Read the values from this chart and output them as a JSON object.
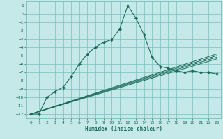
{
  "xlabel": "Humidex (Indice chaleur)",
  "ylabel": "",
  "bg_color": "#c5e8e8",
  "grid_color": "#7abebe",
  "line_color": "#1a6b5a",
  "xlim": [
    -0.5,
    23.5
  ],
  "ylim": [
    -12.5,
    1.5
  ],
  "xticks": [
    0,
    1,
    2,
    3,
    4,
    5,
    6,
    7,
    8,
    9,
    10,
    11,
    12,
    13,
    14,
    15,
    16,
    17,
    18,
    19,
    20,
    21,
    22,
    23
  ],
  "yticks": [
    1,
    0,
    -1,
    -2,
    -3,
    -4,
    -5,
    -6,
    -7,
    -8,
    -9,
    -10,
    -11,
    -12
  ],
  "flat_series": [
    {
      "x": [
        0,
        23
      ],
      "y": [
        -12,
        -4.8
      ]
    },
    {
      "x": [
        0,
        23
      ],
      "y": [
        -12,
        -5.0
      ]
    },
    {
      "x": [
        0,
        23
      ],
      "y": [
        -12,
        -5.2
      ]
    },
    {
      "x": [
        0,
        23
      ],
      "y": [
        -12,
        -5.4
      ]
    }
  ],
  "main_series": {
    "x": [
      0,
      1,
      2,
      3,
      4,
      5,
      6,
      7,
      8,
      9,
      10,
      11,
      12,
      13,
      14,
      15,
      16,
      17,
      18,
      19,
      20,
      21,
      22,
      23
    ],
    "y": [
      -12,
      -12,
      -10,
      -9.3,
      -8.8,
      -7.5,
      -6.0,
      -4.8,
      -4.0,
      -3.4,
      -3.1,
      -1.8,
      1.0,
      -0.5,
      -2.5,
      -5.2,
      -6.3,
      -6.5,
      -6.8,
      -7.0,
      -6.8,
      -7.0,
      -7.0,
      -7.2
    ]
  }
}
